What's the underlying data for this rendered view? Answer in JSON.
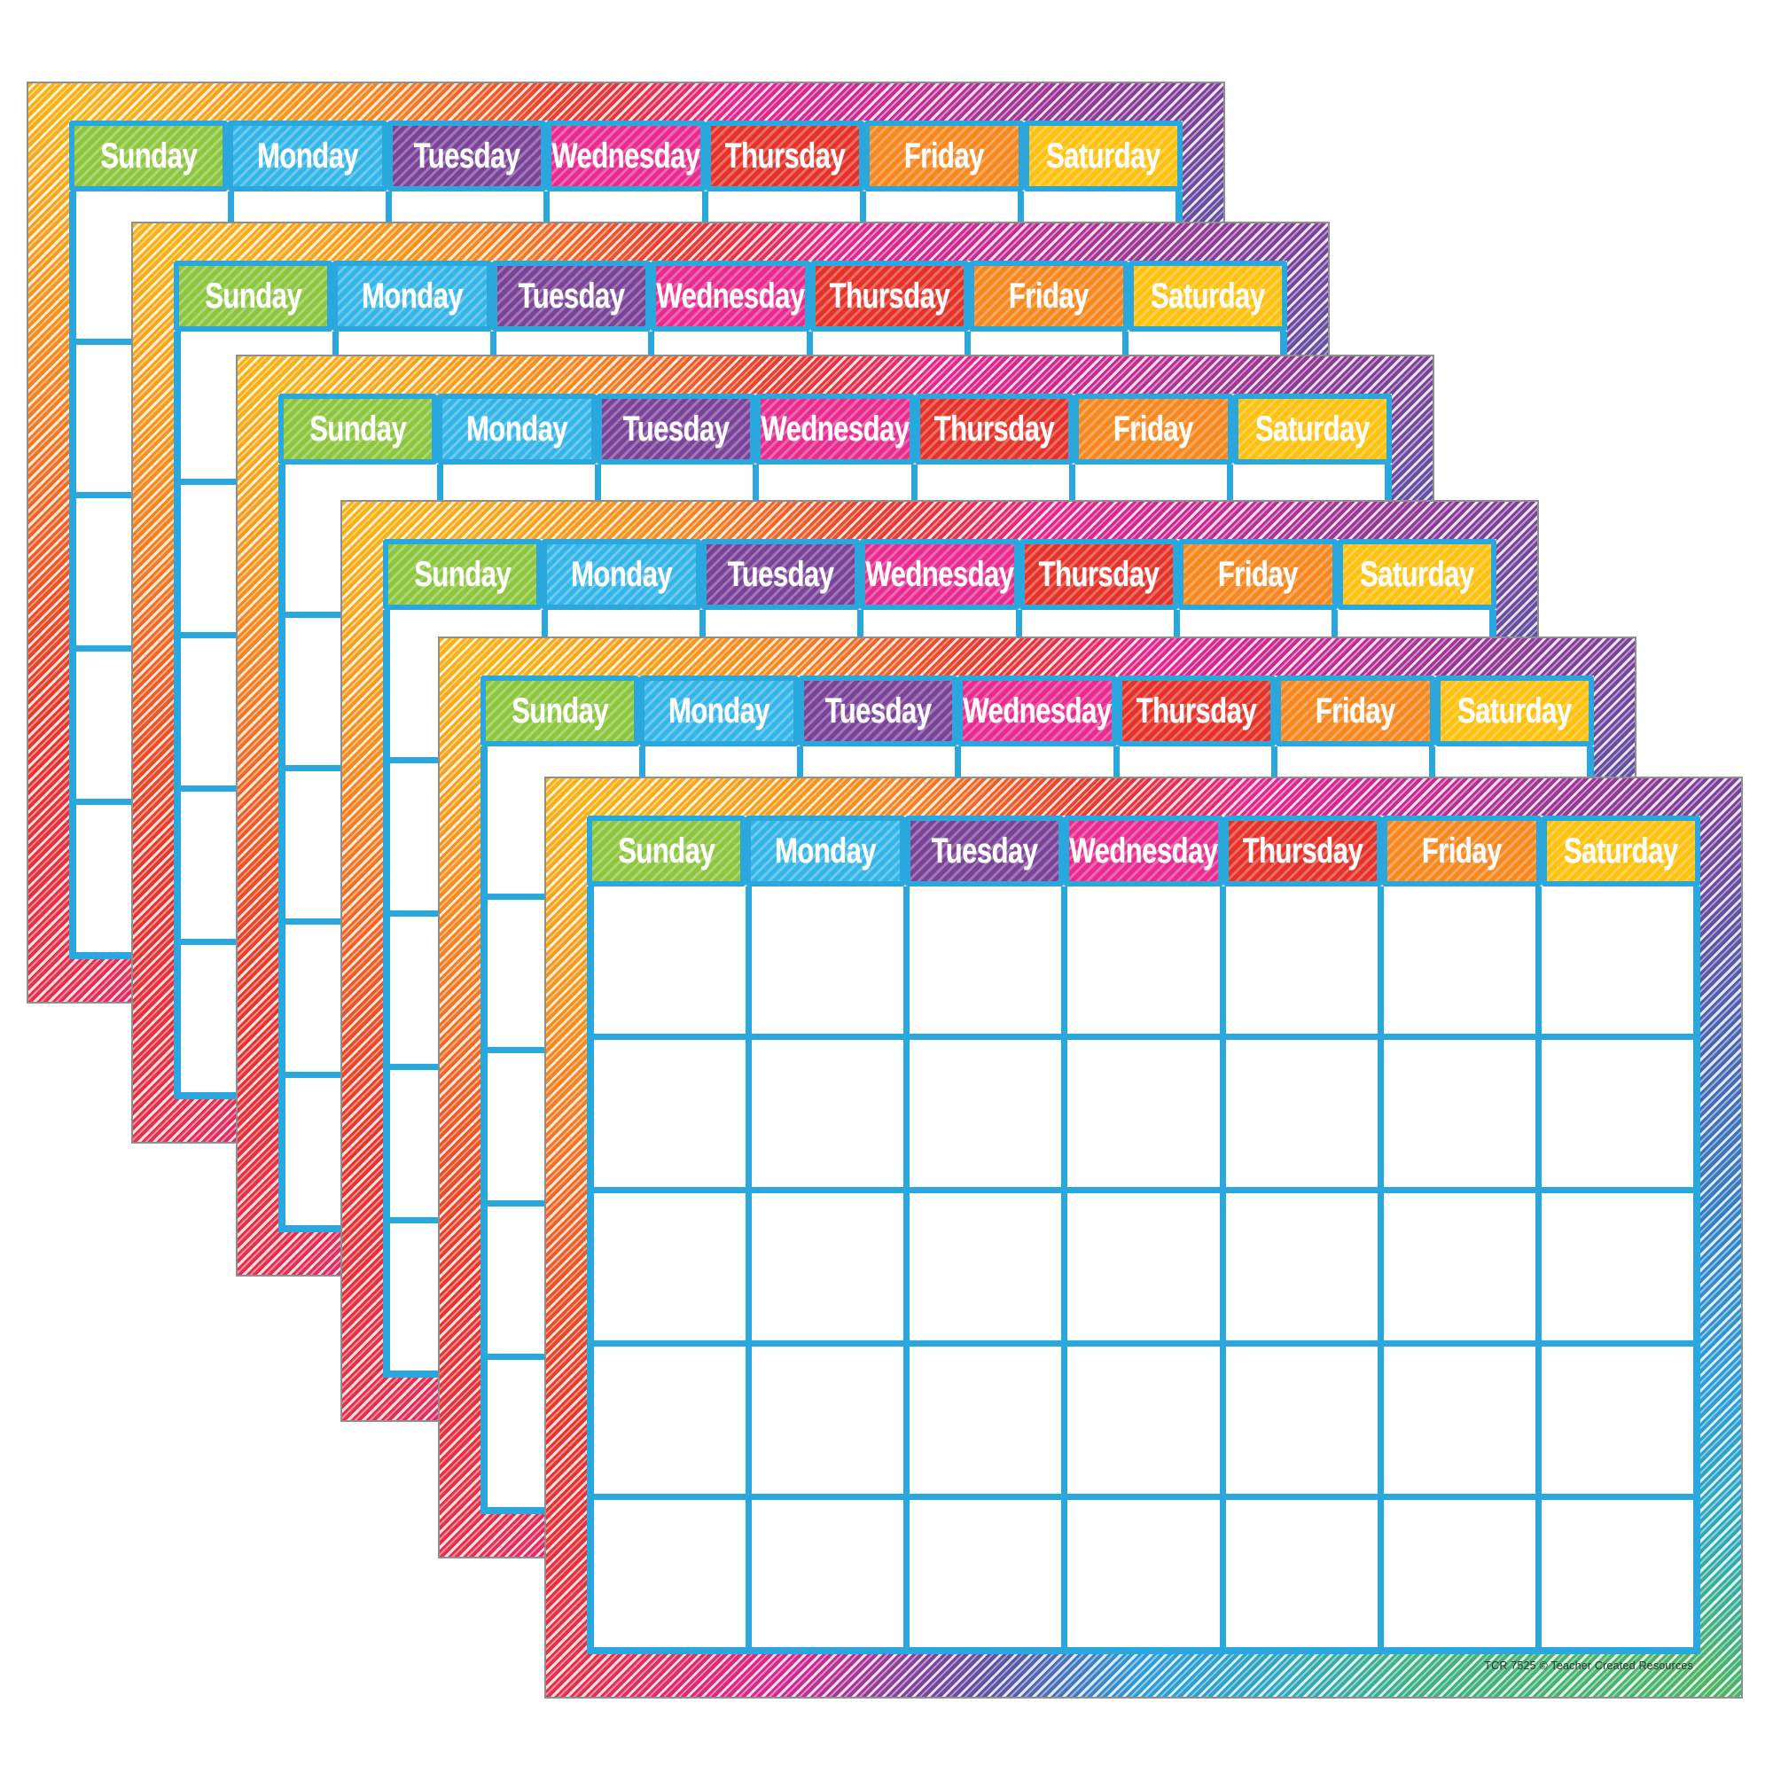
{
  "product": {
    "charts_count": 6,
    "footer_text": "TCR 7525  © Teacher Created Resources"
  },
  "calendar": {
    "day_headers": [
      {
        "label": "Sunday",
        "color": "#8cc63f"
      },
      {
        "label": "Monday",
        "color": "#35b6e8"
      },
      {
        "label": "Tuesday",
        "color": "#7b4299"
      },
      {
        "label": "Wednesday",
        "color": "#e72b8f"
      },
      {
        "label": "Thursday",
        "color": "#e53228"
      },
      {
        "label": "Friday",
        "color": "#f6881f"
      },
      {
        "label": "Saturday",
        "color": "#fec10d"
      }
    ],
    "grid": {
      "columns": 7,
      "rows": 5
    },
    "colors": {
      "grid_line": "#2aa7dc",
      "header_outline": "#2aa7dc",
      "border_rainbow": [
        "#f9b315",
        "#f6861f",
        "#e93f2e",
        "#e5258c",
        "#7c3f98",
        "#337fc3",
        "#2c9fd7",
        "#3fb183",
        "#4cb464"
      ],
      "paper": "#ffffff"
    }
  }
}
